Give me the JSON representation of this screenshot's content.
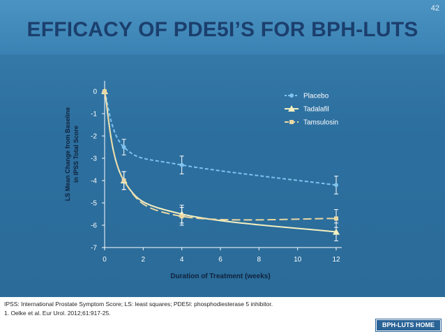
{
  "slide": {
    "number": "42",
    "title": "EFFICACY OF PDE5I’S FOR BPH-LUTS"
  },
  "footer": {
    "note1": "IPSS: International Prostate Symptom Score; LS: least squares; PDE5I: phosphodiesterase 5 inhibitor.",
    "note2": "1. Oelke et al. Eur Urol. 2012;61:917-25.",
    "home_button": "BPH-LUTS HOME"
  },
  "colors": {
    "placebo": "#7ec4ef",
    "tadalafil": "#f5f0c0",
    "tamsulosin": "#ead8a4",
    "axis": "#ffffff",
    "title": "#1b3f6e"
  },
  "chart_data": {
    "type": "line",
    "xlabel": "Duration of Treatment (weeks)",
    "ylabel_line1": "LS Mean Change from Baseline",
    "ylabel_line2": "in IPSS Total Score",
    "xlim": [
      0,
      12
    ],
    "ylim": [
      -7,
      0
    ],
    "xticks": [
      0,
      2,
      4,
      6,
      8,
      10,
      12
    ],
    "yticks": [
      0,
      -1,
      -2,
      -3,
      -4,
      -5,
      -6,
      -7
    ],
    "grid": false,
    "legend_position": "top-right",
    "series": [
      {
        "name": "Placebo",
        "style": "dashed",
        "marker": "circle",
        "x": [
          0,
          1,
          4,
          12
        ],
        "y": [
          0,
          -2.5,
          -3.3,
          -4.2
        ],
        "err": [
          0,
          0.35,
          0.4,
          0.4
        ]
      },
      {
        "name": "Tadalafil",
        "style": "solid",
        "marker": "triangle",
        "x": [
          0,
          1,
          4,
          12
        ],
        "y": [
          0,
          -4.0,
          -5.5,
          -6.3
        ],
        "err": [
          0,
          0.4,
          0.4,
          0.4
        ]
      },
      {
        "name": "Tamsulosin",
        "style": "longdash",
        "marker": "square",
        "x": [
          0,
          1,
          4,
          12
        ],
        "y": [
          0,
          -4.0,
          -5.6,
          -5.7
        ],
        "err": [
          0,
          0.4,
          0.4,
          0.4
        ]
      }
    ]
  }
}
